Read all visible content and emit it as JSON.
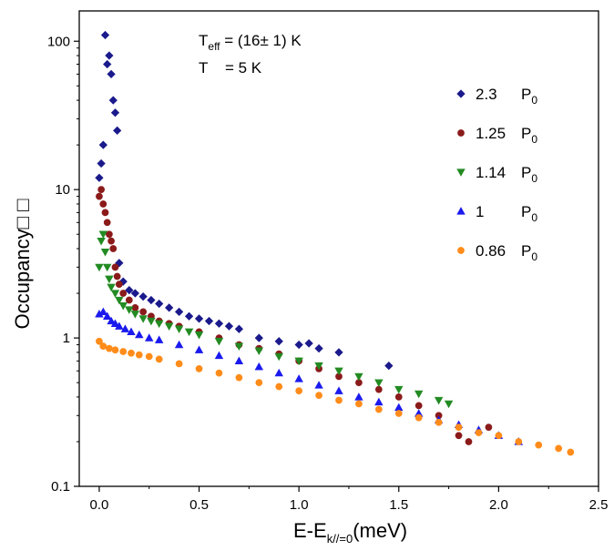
{
  "chart_data": {
    "type": "scatter",
    "xlabel": "E-E",
    "xlabel_sub": "k//=0",
    "xlabel_unit": "(meV)",
    "ylabel": "Occupancy□ □",
    "xlim": [
      -0.1,
      2.5
    ],
    "ylim": [
      0.1,
      160
    ],
    "yscale": "log",
    "x_ticks": [
      "0.0",
      "0.5",
      "1.0",
      "1.5",
      "2.0",
      "2.5"
    ],
    "x_tick_values": [
      0.0,
      0.5,
      1.0,
      1.5,
      2.0,
      2.5
    ],
    "y_ticks": [
      "0.1",
      "1",
      "10",
      "100"
    ],
    "y_tick_values": [
      0.1,
      1,
      10,
      100
    ],
    "grid": false,
    "legend_position": "right",
    "annotations": {
      "teff_main": "T",
      "teff_sub": "eff",
      "teff_rest": " = (16± 1) K",
      "t_line": "T    = 5 K"
    },
    "series": [
      {
        "name": "2.3",
        "legend_value": "2.3",
        "legend_unit": "P",
        "legend_unit_sub": "0",
        "color": "#1a1a8c",
        "marker": "diamond",
        "x": [
          0.0,
          0.01,
          0.02,
          0.03,
          0.04,
          0.05,
          0.06,
          0.07,
          0.08,
          0.09,
          0.1,
          0.12,
          0.15,
          0.18,
          0.22,
          0.26,
          0.3,
          0.35,
          0.4,
          0.45,
          0.5,
          0.55,
          0.6,
          0.65,
          0.7,
          0.8,
          0.9,
          1.0,
          1.05,
          1.1,
          1.2,
          1.45
        ],
        "y": [
          12,
          15,
          20,
          110,
          70,
          80,
          60,
          40,
          33,
          25,
          3.2,
          2.4,
          2.1,
          2.0,
          1.9,
          1.8,
          1.7,
          1.6,
          1.5,
          1.4,
          1.35,
          1.3,
          1.25,
          1.2,
          1.15,
          1.0,
          0.95,
          0.9,
          0.92,
          0.85,
          0.8,
          0.65
        ]
      },
      {
        "name": "1.25",
        "legend_value": "1.25",
        "legend_unit": "P",
        "legend_unit_sub": "0",
        "color": "#8b1a1a",
        "marker": "circle",
        "x": [
          0.0,
          0.01,
          0.02,
          0.03,
          0.04,
          0.05,
          0.06,
          0.07,
          0.08,
          0.09,
          0.1,
          0.12,
          0.15,
          0.18,
          0.22,
          0.26,
          0.3,
          0.35,
          0.4,
          0.5,
          0.6,
          0.7,
          0.8,
          0.9,
          1.0,
          1.1,
          1.2,
          1.3,
          1.4,
          1.5,
          1.6,
          1.7,
          1.8,
          1.85,
          1.95
        ],
        "y": [
          9,
          10,
          8,
          7,
          6,
          5,
          4.5,
          4,
          3,
          2.6,
          2.3,
          2.0,
          1.8,
          1.6,
          1.5,
          1.4,
          1.3,
          1.25,
          1.2,
          1.1,
          1.0,
          0.9,
          0.85,
          0.78,
          0.7,
          0.62,
          0.55,
          0.5,
          0.45,
          0.4,
          0.35,
          0.3,
          0.22,
          0.2,
          0.25
        ]
      },
      {
        "name": "1.14",
        "legend_value": "1.14",
        "legend_unit": "P",
        "legend_unit_sub": "0",
        "color": "#228b22",
        "marker": "triangle-down",
        "x": [
          0.0,
          0.01,
          0.02,
          0.03,
          0.04,
          0.05,
          0.06,
          0.08,
          0.1,
          0.12,
          0.15,
          0.18,
          0.22,
          0.26,
          0.3,
          0.35,
          0.4,
          0.45,
          0.5,
          0.6,
          0.7,
          0.8,
          0.9,
          1.0,
          1.1,
          1.2,
          1.3,
          1.4,
          1.5,
          1.6,
          1.7,
          1.75
        ],
        "y": [
          3.0,
          4.5,
          5.0,
          3.8,
          3.0,
          2.5,
          2.2,
          2.0,
          1.8,
          1.65,
          1.55,
          1.45,
          1.35,
          1.3,
          1.25,
          1.2,
          1.15,
          1.1,
          1.05,
          0.95,
          0.88,
          0.82,
          0.75,
          0.7,
          0.65,
          0.6,
          0.55,
          0.5,
          0.45,
          0.42,
          0.38,
          0.36
        ]
      },
      {
        "name": "1",
        "legend_value": "1",
        "legend_unit": "P",
        "legend_unit_sub": "0",
        "color": "#1a1aee",
        "marker": "triangle-up",
        "x": [
          0.0,
          0.02,
          0.04,
          0.06,
          0.08,
          0.1,
          0.13,
          0.16,
          0.2,
          0.25,
          0.3,
          0.4,
          0.5,
          0.6,
          0.7,
          0.8,
          0.9,
          1.0,
          1.1,
          1.2,
          1.3,
          1.4,
          1.5,
          1.6,
          1.7,
          1.8,
          1.9,
          2.0,
          2.1
        ],
        "y": [
          1.45,
          1.5,
          1.4,
          1.3,
          1.25,
          1.2,
          1.15,
          1.1,
          1.05,
          1.0,
          0.97,
          0.9,
          0.83,
          0.76,
          0.7,
          0.64,
          0.58,
          0.53,
          0.48,
          0.44,
          0.4,
          0.37,
          0.34,
          0.31,
          0.28,
          0.26,
          0.24,
          0.22,
          0.2
        ]
      },
      {
        "name": "0.86",
        "legend_value": "0.86",
        "legend_unit": "P",
        "legend_unit_sub": "0",
        "color": "#ff8c1a",
        "marker": "circle",
        "x": [
          0.0,
          0.02,
          0.05,
          0.08,
          0.12,
          0.16,
          0.2,
          0.25,
          0.3,
          0.4,
          0.5,
          0.6,
          0.7,
          0.8,
          0.9,
          1.0,
          1.1,
          1.2,
          1.3,
          1.4,
          1.5,
          1.6,
          1.7,
          1.8,
          1.9,
          2.0,
          2.1,
          2.2,
          2.3,
          2.36
        ],
        "y": [
          0.95,
          0.88,
          0.85,
          0.83,
          0.81,
          0.79,
          0.77,
          0.75,
          0.72,
          0.67,
          0.62,
          0.58,
          0.54,
          0.5,
          0.47,
          0.44,
          0.41,
          0.38,
          0.36,
          0.33,
          0.31,
          0.29,
          0.27,
          0.25,
          0.23,
          0.22,
          0.2,
          0.19,
          0.18,
          0.17
        ]
      }
    ]
  }
}
